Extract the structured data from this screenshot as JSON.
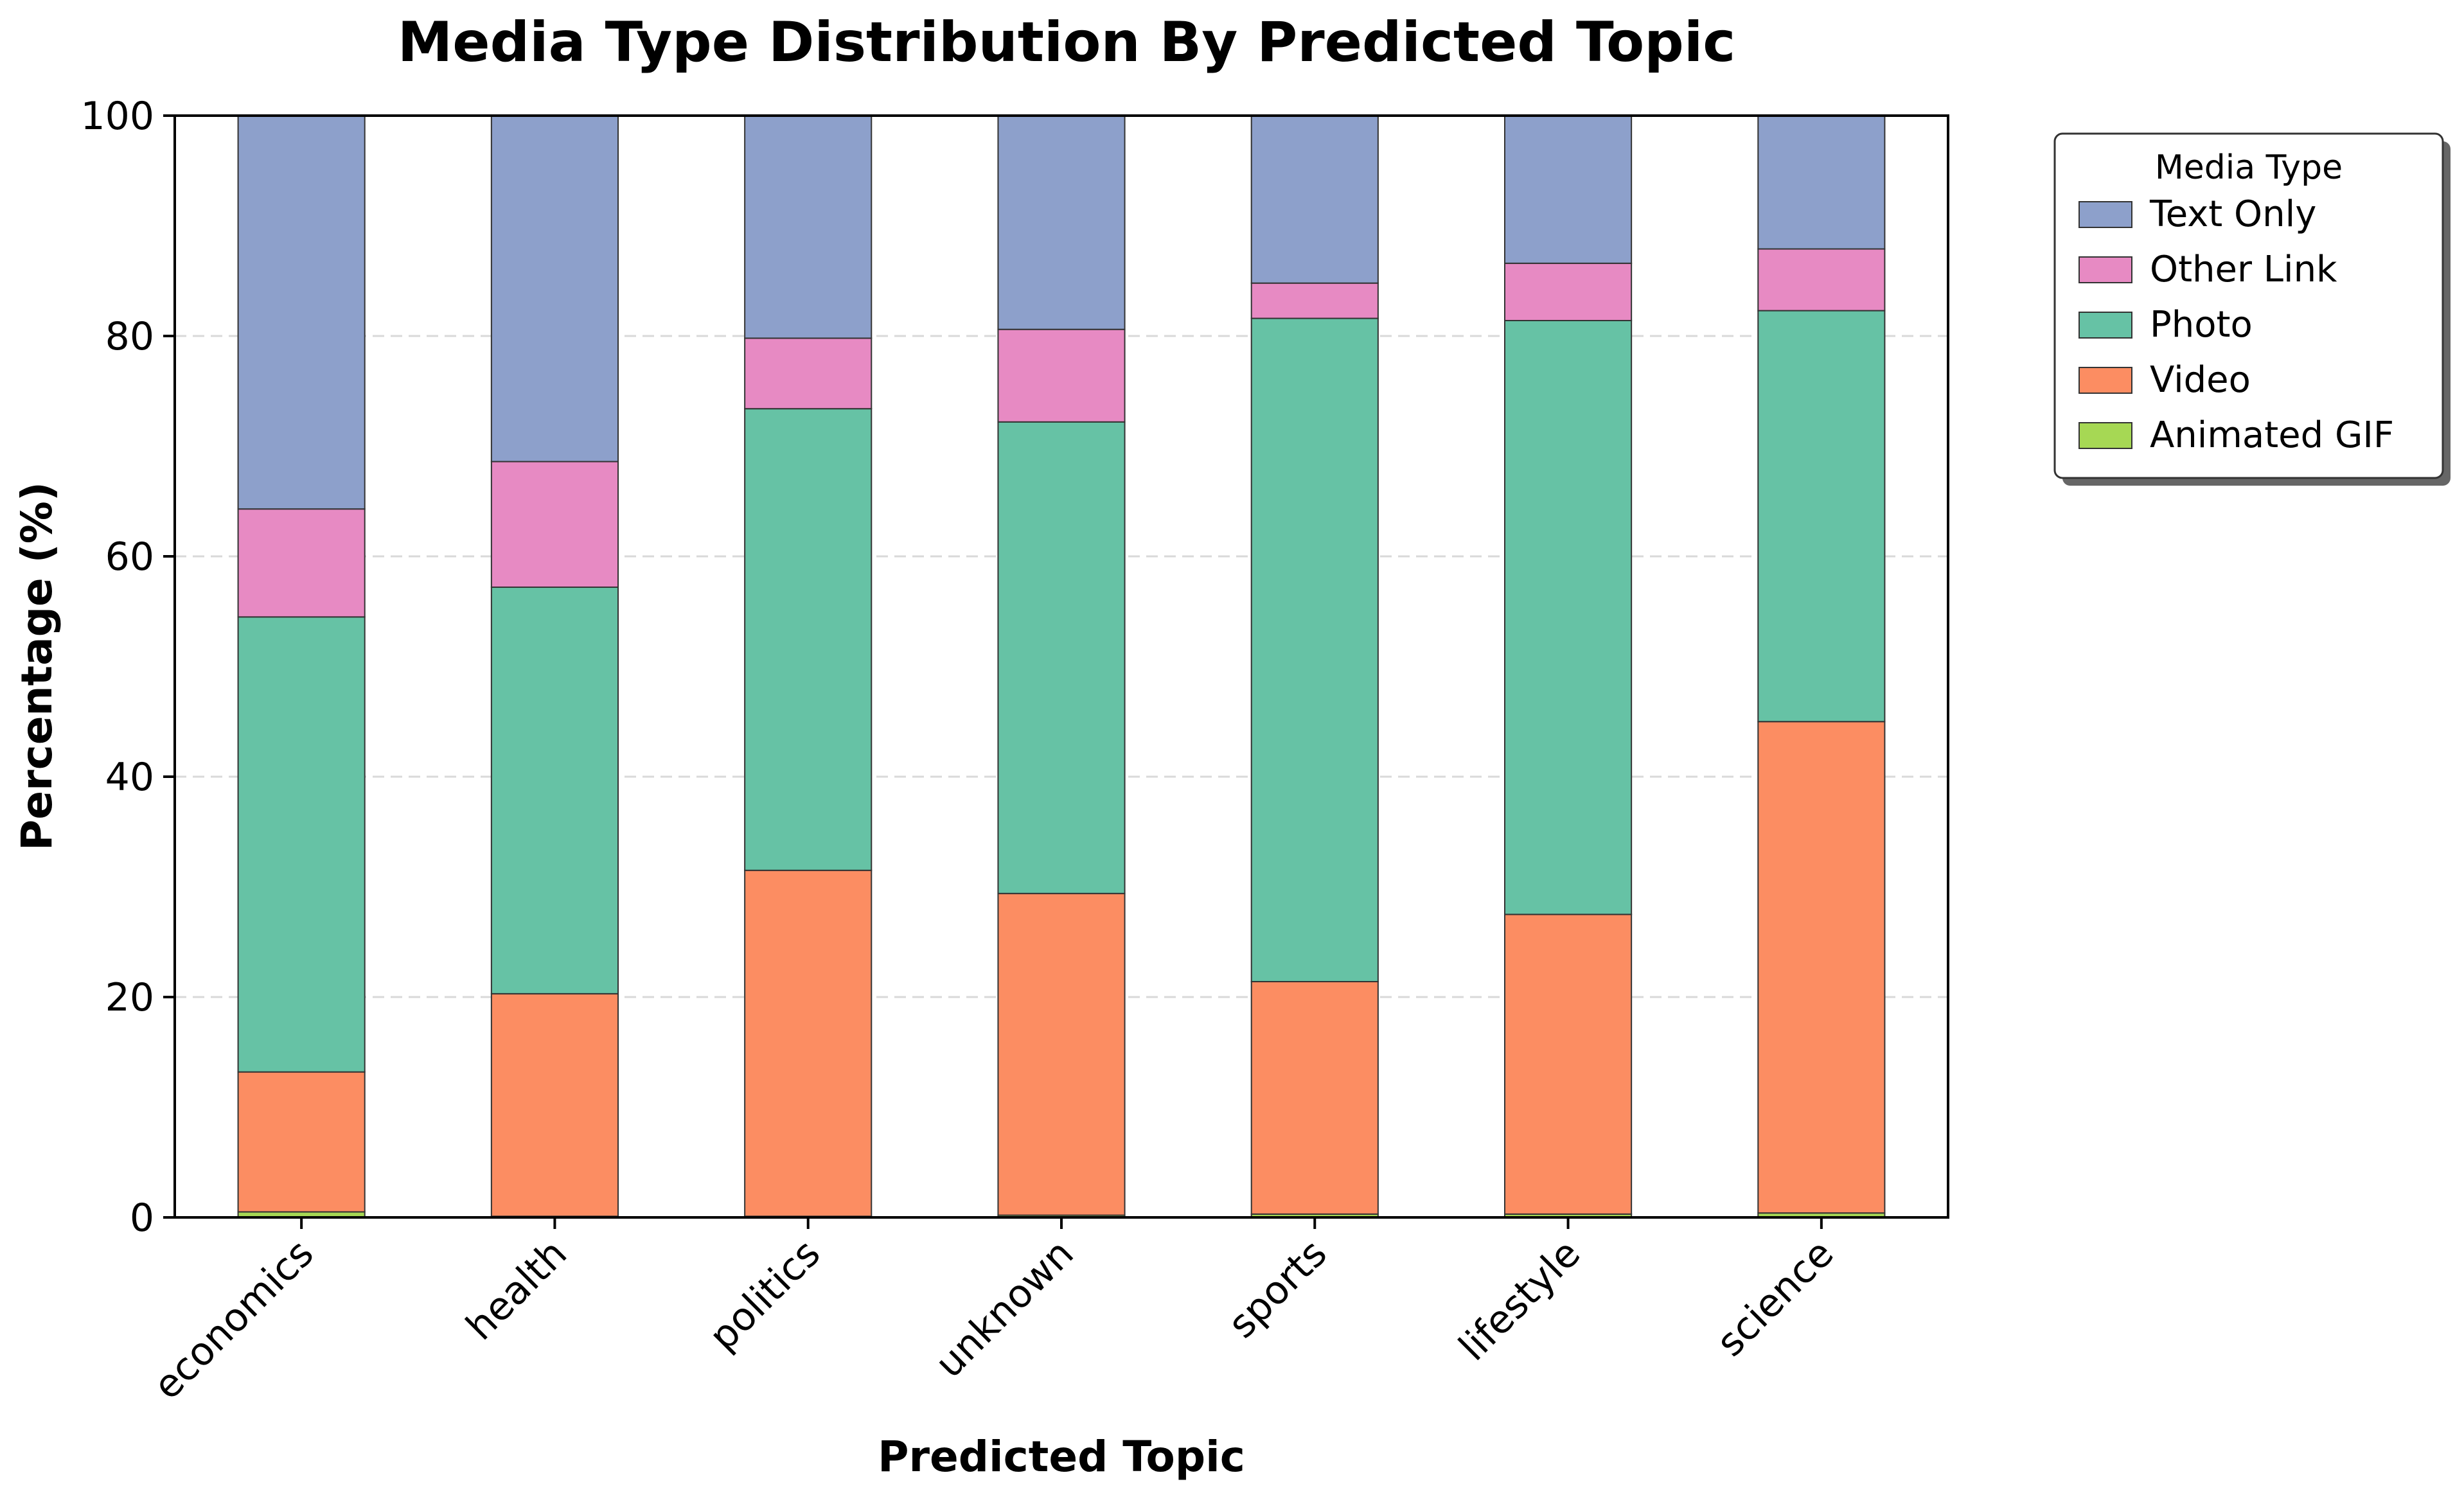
{
  "chart_data": {
    "type": "bar",
    "stacked": true,
    "title": "Media Type Distribution By Predicted Topic",
    "xlabel": "Predicted Topic",
    "ylabel": "Percentage (%)",
    "ylim": [
      0,
      100
    ],
    "yticks": [
      "0",
      "20",
      "40",
      "60",
      "80",
      "100"
    ],
    "grid": "horizontal dashed",
    "legend_position": "outside-top-right",
    "legend_title": "Media Type",
    "categories": [
      "economics",
      "health",
      "politics",
      "unknown",
      "sports",
      "lifestyle",
      "science"
    ],
    "series": [
      {
        "name": "Animated GIF",
        "color": "#a6d854",
        "values": [
          0.5,
          0.1,
          0.1,
          0.2,
          0.3,
          0.3,
          0.4
        ]
      },
      {
        "name": "Video",
        "color": "#fc8d62",
        "values": [
          12.7,
          20.2,
          31.4,
          29.2,
          21.1,
          27.2,
          44.6
        ]
      },
      {
        "name": "Photo",
        "color": "#66c2a5",
        "values": [
          41.3,
          36.9,
          41.9,
          42.8,
          60.2,
          53.9,
          37.3
        ]
      },
      {
        "name": "Other Link",
        "color": "#e78ac3",
        "values": [
          9.8,
          11.4,
          6.4,
          8.4,
          3.2,
          5.2,
          5.6
        ]
      },
      {
        "name": "Text Only",
        "color": "#8da0cb",
        "values": [
          35.7,
          31.4,
          20.2,
          19.4,
          15.2,
          13.4,
          12.1
        ]
      }
    ],
    "legend_order": [
      "Text Only",
      "Other Link",
      "Photo",
      "Video",
      "Animated GIF"
    ]
  }
}
